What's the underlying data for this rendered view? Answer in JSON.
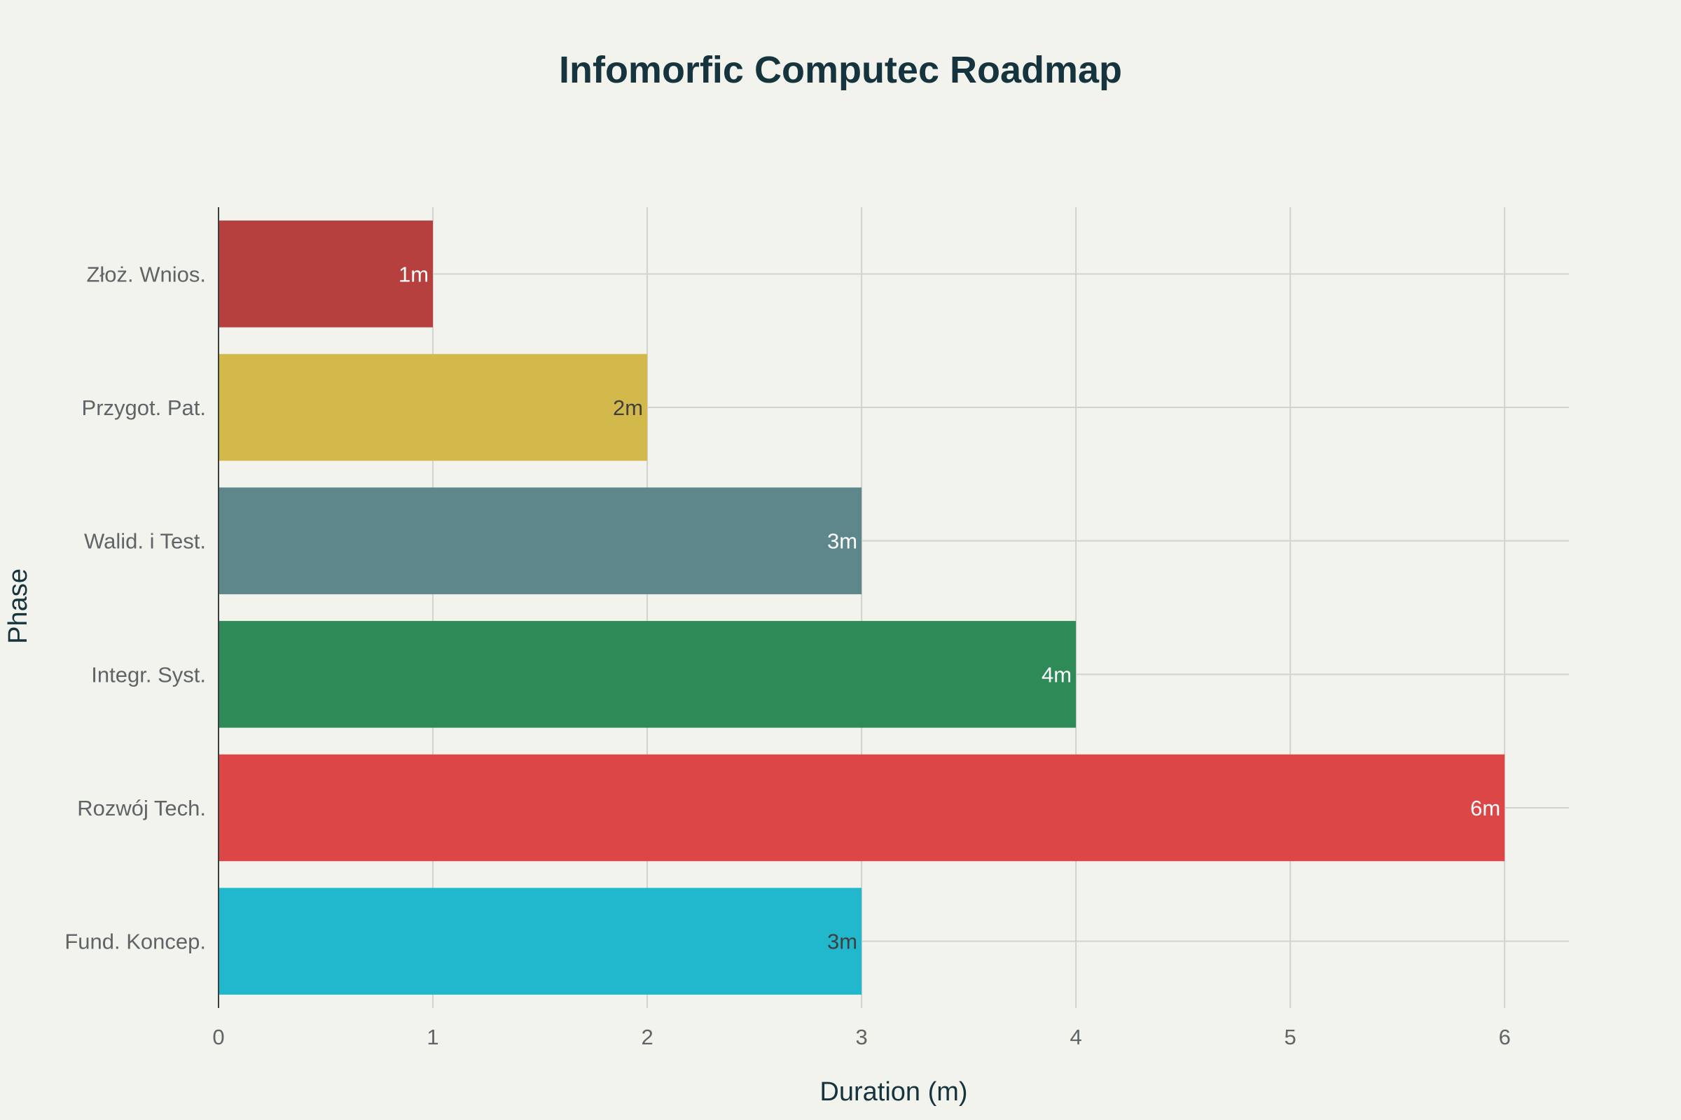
{
  "chart_data": {
    "type": "bar",
    "orientation": "horizontal",
    "title": "Infomorfic Computec Roadmap",
    "xlabel": "Duration (m)",
    "ylabel": "Phase",
    "xlim": [
      0,
      6.3
    ],
    "xticks": [
      0,
      1,
      2,
      3,
      4,
      5,
      6
    ],
    "grid": true,
    "categories": [
      "Złoż. Wnios.",
      "Przygot. Pat.",
      "Walid. i Test.",
      "Integr. Syst.",
      "Rozwój Tech.",
      "Fund. Koncep."
    ],
    "values": [
      1,
      2,
      3,
      4,
      6,
      3
    ],
    "data_labels": [
      "1m",
      "2m",
      "3m",
      "4m",
      "6m",
      "3m"
    ],
    "colors": [
      "#b5403d",
      "#d3b94b",
      "#5e878c",
      "#2e8a56",
      "#dc4647",
      "#21b8cd"
    ],
    "label_colors": [
      "#ffffff",
      "#3f3f3f",
      "#ffffff",
      "#ffffff",
      "#ffffff",
      "#3f3f3f"
    ]
  }
}
